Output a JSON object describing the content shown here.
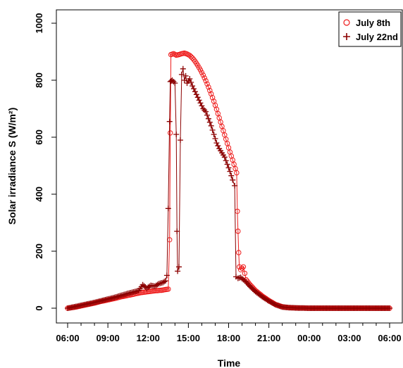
{
  "chart_data": {
    "type": "line",
    "xlabel": "Time",
    "ylabel": "Solar irradiance S (W/m²)",
    "x_ticks": [
      "06:00",
      "09:00",
      "12:00",
      "15:00",
      "18:00",
      "21:00",
      "00:00",
      "03:00",
      "06:00"
    ],
    "y_ticks": [
      0,
      200,
      400,
      600,
      800,
      1000
    ],
    "xlim_hours": [
      6,
      30
    ],
    "ylim": [
      0,
      1000
    ],
    "grid": false,
    "legend_position": "top-right",
    "series": [
      {
        "name": "July 8th",
        "marker": "circle",
        "color": "#ee1c1c",
        "points": [
          [
            6.0,
            0
          ],
          [
            6.5,
            3
          ],
          [
            7.0,
            8
          ],
          [
            7.5,
            13
          ],
          [
            8.0,
            18
          ],
          [
            8.5,
            24
          ],
          [
            9.0,
            29
          ],
          [
            9.5,
            34
          ],
          [
            10.0,
            40
          ],
          [
            10.5,
            45
          ],
          [
            11.0,
            50
          ],
          [
            11.5,
            55
          ],
          [
            12.0,
            58
          ],
          [
            12.5,
            61
          ],
          [
            13.0,
            63
          ],
          [
            13.5,
            67
          ],
          [
            13.6,
            240
          ],
          [
            13.65,
            615
          ],
          [
            13.7,
            890
          ],
          [
            13.9,
            893
          ],
          [
            14.1,
            888
          ],
          [
            14.3,
            890
          ],
          [
            14.5,
            893
          ],
          [
            14.7,
            895
          ],
          [
            14.9,
            892
          ],
          [
            15.1,
            887
          ],
          [
            15.3,
            878
          ],
          [
            15.5,
            866
          ],
          [
            15.7,
            852
          ],
          [
            15.9,
            836
          ],
          [
            16.1,
            818
          ],
          [
            16.3,
            798
          ],
          [
            16.5,
            776
          ],
          [
            16.7,
            752
          ],
          [
            16.9,
            726
          ],
          [
            17.1,
            698
          ],
          [
            17.3,
            668
          ],
          [
            17.5,
            638
          ],
          [
            17.7,
            608
          ],
          [
            17.9,
            578
          ],
          [
            18.1,
            548
          ],
          [
            18.3,
            520
          ],
          [
            18.5,
            490
          ],
          [
            18.6,
            475
          ],
          [
            18.65,
            340
          ],
          [
            18.7,
            270
          ],
          [
            18.75,
            195
          ],
          [
            18.8,
            145
          ],
          [
            18.9,
            135
          ],
          [
            19.1,
            145
          ],
          [
            19.3,
            100
          ],
          [
            19.6,
            82
          ],
          [
            20.0,
            62
          ],
          [
            20.5,
            43
          ],
          [
            21.0,
            27
          ],
          [
            21.5,
            13
          ],
          [
            22.0,
            5
          ],
          [
            22.5,
            2
          ],
          [
            23.0,
            1
          ],
          [
            24.0,
            0
          ],
          [
            25.0,
            0
          ],
          [
            26.0,
            0
          ],
          [
            27.0,
            0
          ],
          [
            28.0,
            0
          ],
          [
            29.0,
            0
          ],
          [
            30.0,
            0
          ]
        ]
      },
      {
        "name": "July 22nd",
        "marker": "plus",
        "color": "#8b0000",
        "points": [
          [
            6.0,
            0
          ],
          [
            6.5,
            5
          ],
          [
            7.0,
            10
          ],
          [
            7.5,
            15
          ],
          [
            8.0,
            20
          ],
          [
            8.5,
            26
          ],
          [
            9.0,
            32
          ],
          [
            9.5,
            38
          ],
          [
            10.0,
            45
          ],
          [
            10.5,
            52
          ],
          [
            11.0,
            58
          ],
          [
            11.3,
            62
          ],
          [
            11.6,
            82
          ],
          [
            11.9,
            70
          ],
          [
            12.2,
            80
          ],
          [
            12.5,
            77
          ],
          [
            12.8,
            86
          ],
          [
            13.1,
            90
          ],
          [
            13.3,
            96
          ],
          [
            13.4,
            115
          ],
          [
            13.5,
            350
          ],
          [
            13.6,
            655
          ],
          [
            13.65,
            795
          ],
          [
            13.8,
            800
          ],
          [
            14.0,
            790
          ],
          [
            14.1,
            610
          ],
          [
            14.15,
            270
          ],
          [
            14.2,
            130
          ],
          [
            14.3,
            145
          ],
          [
            14.4,
            590
          ],
          [
            14.5,
            820
          ],
          [
            14.6,
            840
          ],
          [
            14.7,
            800
          ],
          [
            14.8,
            815
          ],
          [
            14.9,
            790
          ],
          [
            15.1,
            805
          ],
          [
            15.3,
            780
          ],
          [
            15.5,
            760
          ],
          [
            15.7,
            740
          ],
          [
            15.9,
            720
          ],
          [
            16.1,
            700
          ],
          [
            16.3,
            690
          ],
          [
            16.5,
            665
          ],
          [
            16.7,
            640
          ],
          [
            16.9,
            610
          ],
          [
            17.1,
            580
          ],
          [
            17.3,
            560
          ],
          [
            17.5,
            545
          ],
          [
            17.7,
            530
          ],
          [
            17.9,
            505
          ],
          [
            18.1,
            480
          ],
          [
            18.3,
            450
          ],
          [
            18.45,
            430
          ],
          [
            18.55,
            110
          ],
          [
            18.7,
            105
          ],
          [
            18.9,
            108
          ],
          [
            19.1,
            100
          ],
          [
            19.3,
            92
          ],
          [
            19.6,
            76
          ],
          [
            20.0,
            58
          ],
          [
            20.5,
            40
          ],
          [
            21.0,
            25
          ],
          [
            21.5,
            12
          ],
          [
            22.0,
            4
          ],
          [
            22.5,
            2
          ],
          [
            23.0,
            1
          ],
          [
            24.0,
            0
          ],
          [
            25.0,
            0
          ],
          [
            26.0,
            0
          ],
          [
            27.0,
            0
          ],
          [
            28.0,
            0
          ],
          [
            29.0,
            0
          ],
          [
            30.0,
            0
          ]
        ]
      }
    ]
  }
}
